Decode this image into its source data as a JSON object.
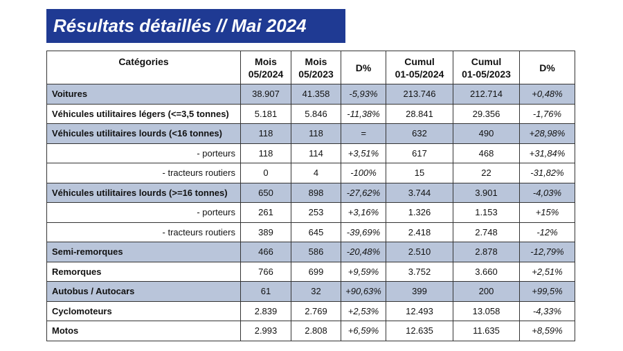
{
  "header": {
    "title": "Résultats détaillés // Mai 2024"
  },
  "table": {
    "headers": [
      [
        "Catégories"
      ],
      [
        "Mois",
        "05/2024"
      ],
      [
        "Mois",
        "05/2023"
      ],
      [
        "D%"
      ],
      [
        "Cumul",
        "01-05/2024"
      ],
      [
        "Cumul",
        "01-05/2023"
      ],
      [
        "D%"
      ]
    ],
    "rows": [
      [
        "Voitures",
        "38.907",
        "41.358",
        "-5,93%",
        "213.746",
        "212.714",
        "+0,48%"
      ],
      [
        "Véhicules utilitaires légers (<=3,5 tonnes)",
        "5.181",
        "5.846",
        "-11,38%",
        "28.841",
        "29.356",
        "-1,76%"
      ],
      [
        "Véhicules utilitaires lourds (<16 tonnes)",
        "118",
        "118",
        "=",
        "632",
        "490",
        "+28,98%"
      ],
      [
        "- porteurs",
        "118",
        "114",
        "+3,51%",
        "617",
        "468",
        "+31,84%"
      ],
      [
        "- tracteurs routiers",
        "0",
        "4",
        "-100%",
        "15",
        "22",
        "-31,82%"
      ],
      [
        "Véhicules utilitaires lourds (>=16 tonnes)",
        "650",
        "898",
        "-27,62%",
        "3.744",
        "3.901",
        "-4,03%"
      ],
      [
        "- porteurs",
        "261",
        "253",
        "+3,16%",
        "1.326",
        "1.153",
        "+15%"
      ],
      [
        "- tracteurs routiers",
        "389",
        "645",
        "-39,69%",
        "2.418",
        "2.748",
        "-12%"
      ],
      [
        "Semi-remorques",
        "466",
        "586",
        "-20,48%",
        "2.510",
        "2.878",
        "-12,79%"
      ],
      [
        "Remorques",
        "766",
        "699",
        "+9,59%",
        "3.752",
        "3.660",
        "+2,51%"
      ],
      [
        "Autobus / Autocars",
        "61",
        "32",
        "+90,63%",
        "399",
        "200",
        "+99,5%"
      ],
      [
        "Cyclomoteurs",
        "2.839",
        "2.769",
        "+2,53%",
        "12.493",
        "13.058",
        "-4,33%"
      ],
      [
        "Motos",
        "2.993",
        "2.808",
        "+6,59%",
        "12.635",
        "11.635",
        "+8,59%"
      ]
    ]
  }
}
